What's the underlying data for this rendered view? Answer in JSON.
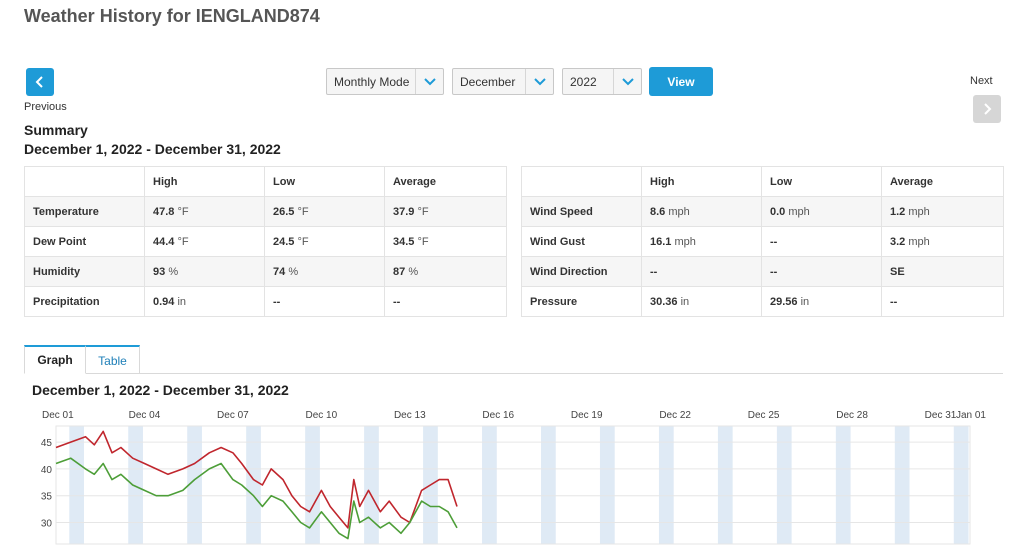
{
  "page": {
    "title": "Weather History for IENGLAND874"
  },
  "nav": {
    "previous_label": "Previous",
    "next_label": "Next"
  },
  "controls": {
    "mode": "Monthly Mode",
    "month": "December",
    "year": "2022",
    "view_label": "View"
  },
  "summary": {
    "title": "Summary",
    "range": "December 1, 2022 - December 31, 2022",
    "left_table": {
      "headers": [
        "",
        "High",
        "Low",
        "Average"
      ],
      "rows": [
        {
          "label": "Temperature",
          "cells": [
            {
              "v": "47.8",
              "u": "°F"
            },
            {
              "v": "26.5",
              "u": "°F"
            },
            {
              "v": "37.9",
              "u": "°F"
            }
          ]
        },
        {
          "label": "Dew Point",
          "cells": [
            {
              "v": "44.4",
              "u": "°F"
            },
            {
              "v": "24.5",
              "u": "°F"
            },
            {
              "v": "34.5",
              "u": "°F"
            }
          ]
        },
        {
          "label": "Humidity",
          "cells": [
            {
              "v": "93",
              "u": "%"
            },
            {
              "v": "74",
              "u": "%"
            },
            {
              "v": "87",
              "u": "%"
            }
          ]
        },
        {
          "label": "Precipitation",
          "cells": [
            {
              "v": "0.94",
              "u": "in"
            },
            {
              "v": "--",
              "u": ""
            },
            {
              "v": "--",
              "u": ""
            }
          ]
        }
      ]
    },
    "right_table": {
      "headers": [
        "",
        "High",
        "Low",
        "Average"
      ],
      "rows": [
        {
          "label": "Wind Speed",
          "cells": [
            {
              "v": "8.6",
              "u": "mph"
            },
            {
              "v": "0.0",
              "u": "mph"
            },
            {
              "v": "1.2",
              "u": "mph"
            }
          ]
        },
        {
          "label": "Wind Gust",
          "cells": [
            {
              "v": "16.1",
              "u": "mph"
            },
            {
              "v": "--",
              "u": ""
            },
            {
              "v": "3.2",
              "u": "mph"
            }
          ]
        },
        {
          "label": "Wind Direction",
          "cells": [
            {
              "v": "--",
              "u": ""
            },
            {
              "v": "--",
              "u": ""
            },
            {
              "v": "SE",
              "u": ""
            }
          ]
        },
        {
          "label": "Pressure",
          "cells": [
            {
              "v": "30.36",
              "u": "in"
            },
            {
              "v": "29.56",
              "u": "in"
            },
            {
              "v": "--",
              "u": ""
            }
          ]
        }
      ]
    }
  },
  "tabs": {
    "graph": "Graph",
    "table": "Table"
  },
  "graph": {
    "title": "December 1, 2022 - December 31, 2022"
  },
  "chart_data": {
    "type": "line",
    "title": "December 1, 2022 - December 31, 2022",
    "x_tick_labels": [
      "Dec 01",
      "Dec 04",
      "Dec 07",
      "Dec 10",
      "Dec 13",
      "Dec 16",
      "Dec 19",
      "Dec 22",
      "Dec 25",
      "Dec 28",
      "Dec 31",
      "Jan 01"
    ],
    "x_range_days": [
      0,
      31
    ],
    "y_ticks": [
      30,
      35,
      40,
      45
    ],
    "ylim": [
      26,
      48
    ],
    "colors": {
      "temperature": "#c0262d",
      "dew_point": "#4d9e38",
      "shade": "#dfeaf5",
      "grid": "#e6e6e6"
    },
    "series": [
      {
        "color": "#c0262d",
        "x": [
          0,
          0.5,
          1,
          1.3,
          1.6,
          1.9,
          2.2,
          2.6,
          3,
          3.4,
          3.8,
          4.3,
          4.7,
          5.2,
          5.6,
          6,
          6.3,
          6.7,
          7,
          7.3,
          7.7,
          8,
          8.3,
          8.6,
          9,
          9.3,
          9.6,
          9.9,
          10.1,
          10.3,
          10.6,
          11,
          11.3,
          11.7,
          12,
          12.4,
          12.7,
          13,
          13.3,
          13.6
        ],
        "values": [
          44,
          45,
          46,
          44.5,
          47,
          43,
          44,
          42,
          41,
          40,
          39,
          40,
          41,
          43,
          44,
          43,
          41,
          38,
          37,
          40,
          38,
          35,
          33,
          32,
          36,
          33,
          31,
          29,
          38,
          33,
          36,
          32,
          34,
          31,
          30,
          36,
          37,
          38,
          38,
          33
        ]
      },
      {
        "color": "#4d9e38",
        "x": [
          0,
          0.5,
          1,
          1.3,
          1.6,
          1.9,
          2.2,
          2.6,
          3,
          3.4,
          3.8,
          4.3,
          4.7,
          5.2,
          5.6,
          6,
          6.3,
          6.7,
          7,
          7.3,
          7.7,
          8,
          8.3,
          8.6,
          9,
          9.3,
          9.6,
          9.9,
          10.1,
          10.3,
          10.6,
          11,
          11.3,
          11.7,
          12,
          12.4,
          12.7,
          13,
          13.3,
          13.6
        ],
        "values": [
          41,
          42,
          40,
          39,
          41,
          38,
          39,
          37,
          36,
          35,
          35,
          36,
          38,
          40,
          41,
          38,
          37,
          35,
          33,
          35,
          34,
          32,
          30,
          29,
          32,
          30,
          28,
          27,
          34,
          30,
          31,
          29,
          30,
          28,
          30,
          34,
          33,
          33,
          32,
          29
        ]
      }
    ]
  }
}
